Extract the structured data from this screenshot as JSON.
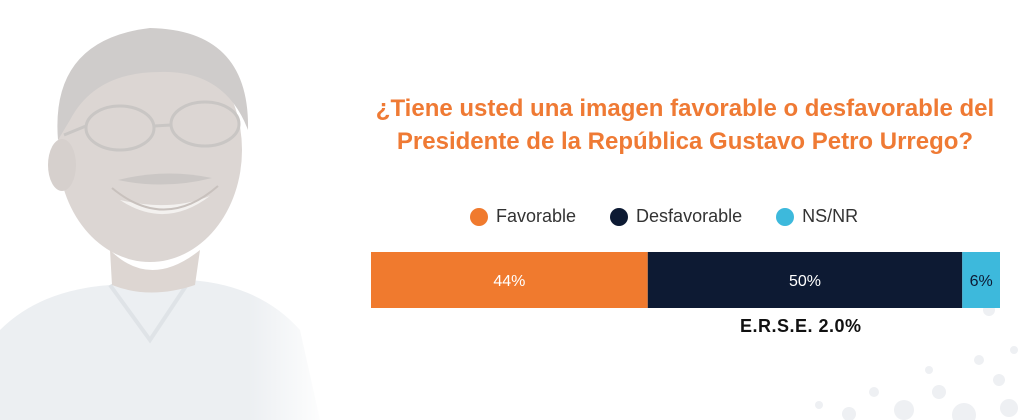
{
  "question": {
    "line1": "¿Tiene usted una imagen favorable o desfavorable del",
    "line2": "Presidente de la República Gustavo Petro Urrego?"
  },
  "colors": {
    "accent": "#ef7a34",
    "favorable": "#f07a2e",
    "desfavorable": "#0d1a33",
    "nsnr": "#3db9dc"
  },
  "chart_data": {
    "type": "bar",
    "orientation": "horizontal-stacked",
    "title": "¿Tiene usted una imagen favorable o desfavorable del Presidente de la República Gustavo Petro Urrego?",
    "categories": [
      "Favorable",
      "Desfavorable",
      "NS/NR"
    ],
    "values": [
      44,
      50,
      6
    ],
    "labels": [
      "44%",
      "50%",
      "6%"
    ],
    "unit": "%",
    "legend_placement": "top",
    "grid": false,
    "annotation": "E.R.S.E. 2.0%"
  },
  "icons": {
    "portrait": "person-portrait-icon",
    "dots": "decorative-dots-icon"
  }
}
